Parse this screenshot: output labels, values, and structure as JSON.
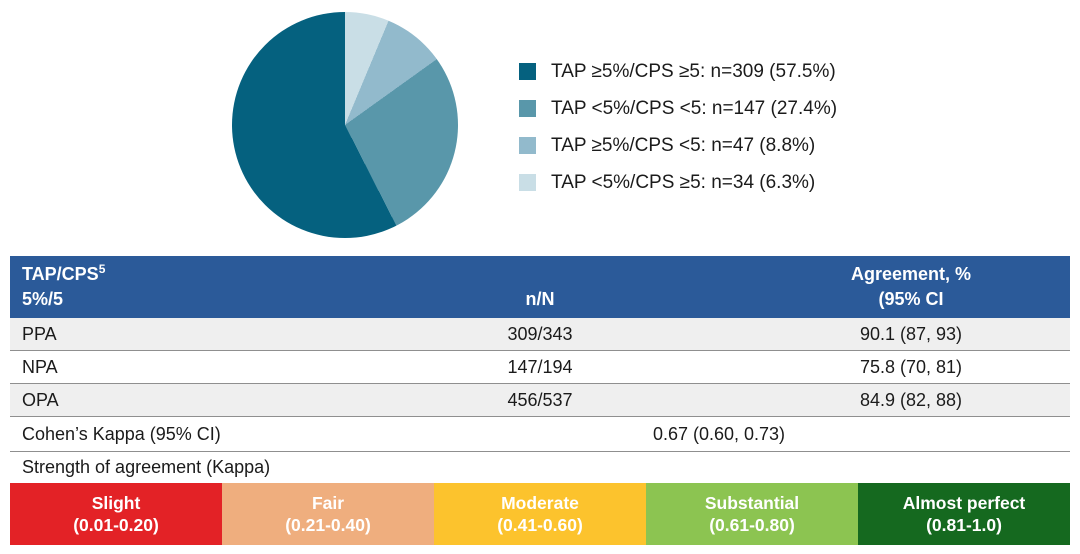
{
  "chart_data": [
    {
      "type": "pie",
      "title": "",
      "legend_position": "right",
      "start_angle_deg": 0,
      "direction": "clockwise-from-top-smallest-first",
      "slices": [
        {
          "label": "TAP ≥5%/CPS ≥5",
          "n": 309,
          "value": 57.5,
          "color": "#05617F",
          "display_label": "TAP ≥5%/CPS ≥5: n=309 (57.5%)"
        },
        {
          "label": "TAP <5%/CPS <5",
          "n": 147,
          "value": 27.4,
          "color": "#5997AA",
          "display_label": "TAP <5%/CPS <5: n=147 (27.4%)"
        },
        {
          "label": "TAP ≥5%/CPS <5",
          "n": 47,
          "value": 8.8,
          "color": "#92BACC",
          "display_label": "TAP ≥5%/CPS <5: n=47 (8.8%)"
        },
        {
          "label": "TAP <5%/CPS ≥5",
          "n": 34,
          "value": 6.3,
          "color": "#C9DEE6",
          "display_label": "TAP <5%/CPS ≥5: n=34 (6.3%)"
        }
      ]
    },
    {
      "type": "table",
      "columns": [
        "TAP/CPS⁵ 5%/5",
        "n/N",
        "Agreement, % (95% CI"
      ],
      "rows": [
        [
          "PPA",
          "309/343",
          "90.1 (87, 93)"
        ],
        [
          "NPA",
          "147/194",
          "75.8 (70, 81)"
        ],
        [
          "OPA",
          "456/537",
          "84.9 (82, 88)"
        ]
      ],
      "footer_rows": [
        [
          "Cohen’s Kappa (95% CI)",
          "0.67 (0.60, 0.73)"
        ],
        [
          "Strength of agreement (Kappa)"
        ]
      ]
    }
  ],
  "table": {
    "header": {
      "col1_line1_base": "TAP/CPS",
      "col1_sup": "5",
      "col1_line2": "5%/5",
      "col2": "n/N",
      "col3_line1": "Agreement, %",
      "col3_line2": "(95% CI",
      "bg_color": "#2B5A99"
    },
    "kappa": {
      "label": "Cohen’s Kappa (95% CI)",
      "value": "0.67 (0.60, 0.73)"
    },
    "strength_label": "Strength of agreement (Kappa)",
    "stripe_color": "#EFEFEF"
  },
  "kappa_scale": {
    "segments": [
      {
        "name": "Slight",
        "range": "(0.01-0.20)",
        "color": "#E32226"
      },
      {
        "name": "Fair",
        "range": "(0.21-0.40)",
        "color": "#EFAE7E"
      },
      {
        "name": "Moderate",
        "range": "(0.41-0.60)",
        "color": "#FCC32D"
      },
      {
        "name": "Substantial",
        "range": "(0.61-0.80)",
        "color": "#8CC451"
      },
      {
        "name": "Almost perfect",
        "range": "(0.81-1.0)",
        "color": "#15691F"
      }
    ]
  }
}
